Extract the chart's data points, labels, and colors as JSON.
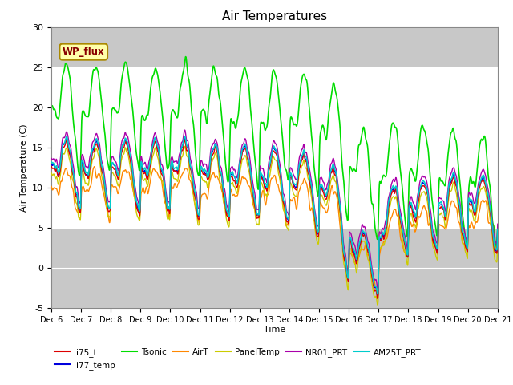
{
  "title": "Air Temperatures",
  "xlabel": "Time",
  "ylabel": "Air Temperature (C)",
  "ylim": [
    -5,
    30
  ],
  "xlim": [
    0,
    360
  ],
  "background_color": "#ffffff",
  "plot_bg_color": "#c8c8c8",
  "white_band": [
    5,
    25
  ],
  "tick_labels": [
    "Dec 6",
    "Dec 7",
    "Dec 8",
    "Dec 9",
    "Dec 10",
    "Dec 11",
    "Dec 12",
    "Dec 13",
    "Dec 14",
    "Dec 15",
    "Dec 16",
    "Dec 17",
    "Dec 18",
    "Dec 19",
    "Dec 20",
    "Dec 21"
  ],
  "tick_positions": [
    0,
    24,
    48,
    72,
    96,
    120,
    144,
    168,
    192,
    216,
    240,
    264,
    288,
    312,
    336,
    360
  ],
  "series": {
    "li75_t": {
      "color": "#dd0000",
      "lw": 1.0
    },
    "li77_temp": {
      "color": "#0000dd",
      "lw": 1.0
    },
    "Tsonic": {
      "color": "#00dd00",
      "lw": 1.2
    },
    "AirT": {
      "color": "#ff8800",
      "lw": 1.0
    },
    "PanelTemp": {
      "color": "#cccc00",
      "lw": 1.0
    },
    "NR01_PRT": {
      "color": "#aa00aa",
      "lw": 1.0
    },
    "AM25T_PRT": {
      "color": "#00cccc",
      "lw": 1.2
    }
  },
  "wp_flux_label": "WP_flux",
  "wp_flux_color": "#880000",
  "wp_flux_bg": "#ffffaa",
  "wp_flux_border": "#aa8800"
}
